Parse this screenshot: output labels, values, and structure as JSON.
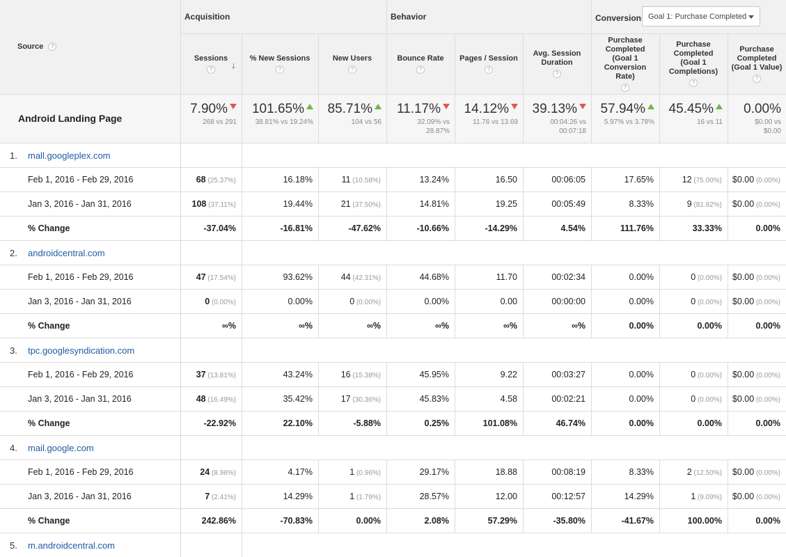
{
  "header": {
    "source_label": "Source",
    "groups": {
      "acquisition": "Acquisition",
      "behavior": "Behavior",
      "conversions": "Conversions"
    },
    "goal_dropdown": "Goal 1: Purchase Completed",
    "columns": [
      {
        "line1": "Sessions",
        "line2": "",
        "line3": "",
        "line4": ""
      },
      {
        "line1": "% New Sessions",
        "line2": "",
        "line3": "",
        "line4": ""
      },
      {
        "line1": "New Users",
        "line2": "",
        "line3": "",
        "line4": ""
      },
      {
        "line1": "Bounce Rate",
        "line2": "",
        "line3": "",
        "line4": ""
      },
      {
        "line1": "Pages / Session",
        "line2": "",
        "line3": "",
        "line4": ""
      },
      {
        "line1": "Avg. Session",
        "line2": "Duration",
        "line3": "",
        "line4": ""
      },
      {
        "line1": "Purchase",
        "line2": "Completed",
        "line3": "(Goal 1",
        "line4": "Conversion",
        "line5": "Rate)"
      },
      {
        "line1": "Purchase",
        "line2": "Completed",
        "line3": "(Goal 1",
        "line4": "Completions)"
      },
      {
        "line1": "Purchase",
        "line2": "Completed",
        "line3": "(Goal 1 Value)"
      }
    ],
    "help_glyph": "?"
  },
  "summary": {
    "label": "Android Landing Page",
    "cells": [
      {
        "value": "7.90%",
        "trend": "down",
        "sub1": "268 vs 291",
        "sub2": ""
      },
      {
        "value": "101.65%",
        "trend": "up",
        "sub1": "38.81% vs 19.24%",
        "sub2": ""
      },
      {
        "value": "85.71%",
        "trend": "up",
        "sub1": "104 vs 56",
        "sub2": ""
      },
      {
        "value": "11.17%",
        "trend": "down",
        "sub1": "32.09% vs",
        "sub2": "28.87%"
      },
      {
        "value": "14.12%",
        "trend": "down",
        "sub1": "11.76 vs 13.69",
        "sub2": ""
      },
      {
        "value": "39.13%",
        "trend": "down",
        "sub1": "00:04:26 vs",
        "sub2": "00:07:18"
      },
      {
        "value": "57.94%",
        "trend": "up",
        "sub1": "5.97% vs 3.78%",
        "sub2": ""
      },
      {
        "value": "45.45%",
        "trend": "up",
        "sub1": "16 vs 11",
        "sub2": ""
      },
      {
        "value": "0.00%",
        "trend": "",
        "sub1": "$0.00 vs",
        "sub2": "$0.00"
      }
    ]
  },
  "sources": [
    {
      "num": "1.",
      "name": "mall.googleplex.com",
      "rows": [
        {
          "label": "Feb 1, 2016 - Feb 29, 2016",
          "cells": [
            [
              "68",
              "(25.37%)"
            ],
            [
              "16.18%",
              ""
            ],
            [
              "11",
              "(10.58%)"
            ],
            [
              "13.24%",
              ""
            ],
            [
              "16.50",
              ""
            ],
            [
              "00:06:05",
              ""
            ],
            [
              "17.65%",
              ""
            ],
            [
              "12",
              "(75.00%)"
            ],
            [
              "$0.00",
              "(0.00%)"
            ]
          ]
        },
        {
          "label": "Jan 3, 2016 - Jan 31, 2016",
          "cells": [
            [
              "108",
              "(37.11%)"
            ],
            [
              "19.44%",
              ""
            ],
            [
              "21",
              "(37.50%)"
            ],
            [
              "14.81%",
              ""
            ],
            [
              "19.25",
              ""
            ],
            [
              "00:05:49",
              ""
            ],
            [
              "8.33%",
              ""
            ],
            [
              "9",
              "(81.82%)"
            ],
            [
              "$0.00",
              "(0.00%)"
            ]
          ]
        },
        {
          "label": "% Change",
          "cells": [
            [
              "-37.04%",
              ""
            ],
            [
              "-16.81%",
              ""
            ],
            [
              "-47.62%",
              ""
            ],
            [
              "-10.66%",
              ""
            ],
            [
              "-14.29%",
              ""
            ],
            [
              "4.54%",
              ""
            ],
            [
              "111.76%",
              ""
            ],
            [
              "33.33%",
              ""
            ],
            [
              "0.00%",
              ""
            ]
          ]
        }
      ]
    },
    {
      "num": "2.",
      "name": "androidcentral.com",
      "rows": [
        {
          "label": "Feb 1, 2016 - Feb 29, 2016",
          "cells": [
            [
              "47",
              "(17.54%)"
            ],
            [
              "93.62%",
              ""
            ],
            [
              "44",
              "(42.31%)"
            ],
            [
              "44.68%",
              ""
            ],
            [
              "11.70",
              ""
            ],
            [
              "00:02:34",
              ""
            ],
            [
              "0.00%",
              ""
            ],
            [
              "0",
              "(0.00%)"
            ],
            [
              "$0.00",
              "(0.00%)"
            ]
          ]
        },
        {
          "label": "Jan 3, 2016 - Jan 31, 2016",
          "cells": [
            [
              "0",
              "(0.00%)"
            ],
            [
              "0.00%",
              ""
            ],
            [
              "0",
              "(0.00%)"
            ],
            [
              "0.00%",
              ""
            ],
            [
              "0.00",
              ""
            ],
            [
              "00:00:00",
              ""
            ],
            [
              "0.00%",
              ""
            ],
            [
              "0",
              "(0.00%)"
            ],
            [
              "$0.00",
              "(0.00%)"
            ]
          ]
        },
        {
          "label": "% Change",
          "cells": [
            [
              "∞%",
              ""
            ],
            [
              "∞%",
              ""
            ],
            [
              "∞%",
              ""
            ],
            [
              "∞%",
              ""
            ],
            [
              "∞%",
              ""
            ],
            [
              "∞%",
              ""
            ],
            [
              "0.00%",
              ""
            ],
            [
              "0.00%",
              ""
            ],
            [
              "0.00%",
              ""
            ]
          ]
        }
      ]
    },
    {
      "num": "3.",
      "name": "tpc.googlesyndication.com",
      "rows": [
        {
          "label": "Feb 1, 2016 - Feb 29, 2016",
          "cells": [
            [
              "37",
              "(13.81%)"
            ],
            [
              "43.24%",
              ""
            ],
            [
              "16",
              "(15.38%)"
            ],
            [
              "45.95%",
              ""
            ],
            [
              "9.22",
              ""
            ],
            [
              "00:03:27",
              ""
            ],
            [
              "0.00%",
              ""
            ],
            [
              "0",
              "(0.00%)"
            ],
            [
              "$0.00",
              "(0.00%)"
            ]
          ]
        },
        {
          "label": "Jan 3, 2016 - Jan 31, 2016",
          "cells": [
            [
              "48",
              "(16.49%)"
            ],
            [
              "35.42%",
              ""
            ],
            [
              "17",
              "(30.36%)"
            ],
            [
              "45.83%",
              ""
            ],
            [
              "4.58",
              ""
            ],
            [
              "00:02:21",
              ""
            ],
            [
              "0.00%",
              ""
            ],
            [
              "0",
              "(0.00%)"
            ],
            [
              "$0.00",
              "(0.00%)"
            ]
          ]
        },
        {
          "label": "% Change",
          "cells": [
            [
              "-22.92%",
              ""
            ],
            [
              "22.10%",
              ""
            ],
            [
              "-5.88%",
              ""
            ],
            [
              "0.25%",
              ""
            ],
            [
              "101.08%",
              ""
            ],
            [
              "46.74%",
              ""
            ],
            [
              "0.00%",
              ""
            ],
            [
              "0.00%",
              ""
            ],
            [
              "0.00%",
              ""
            ]
          ]
        }
      ]
    },
    {
      "num": "4.",
      "name": "mail.google.com",
      "rows": [
        {
          "label": "Feb 1, 2016 - Feb 29, 2016",
          "cells": [
            [
              "24",
              "(8.96%)"
            ],
            [
              "4.17%",
              ""
            ],
            [
              "1",
              "(0.96%)"
            ],
            [
              "29.17%",
              ""
            ],
            [
              "18.88",
              ""
            ],
            [
              "00:08:19",
              ""
            ],
            [
              "8.33%",
              ""
            ],
            [
              "2",
              "(12.50%)"
            ],
            [
              "$0.00",
              "(0.00%)"
            ]
          ]
        },
        {
          "label": "Jan 3, 2016 - Jan 31, 2016",
          "cells": [
            [
              "7",
              "(2.41%)"
            ],
            [
              "14.29%",
              ""
            ],
            [
              "1",
              "(1.79%)"
            ],
            [
              "28.57%",
              ""
            ],
            [
              "12.00",
              ""
            ],
            [
              "00:12:57",
              ""
            ],
            [
              "14.29%",
              ""
            ],
            [
              "1",
              "(9.09%)"
            ],
            [
              "$0.00",
              "(0.00%)"
            ]
          ]
        },
        {
          "label": "% Change",
          "cells": [
            [
              "242.86%",
              ""
            ],
            [
              "-70.83%",
              ""
            ],
            [
              "0.00%",
              ""
            ],
            [
              "2.08%",
              ""
            ],
            [
              "57.29%",
              ""
            ],
            [
              "-35.80%",
              ""
            ],
            [
              "-41.67%",
              ""
            ],
            [
              "100.00%",
              ""
            ],
            [
              "0.00%",
              ""
            ]
          ]
        }
      ]
    },
    {
      "num": "5.",
      "name": "m.androidcentral.com",
      "rows": []
    }
  ]
}
